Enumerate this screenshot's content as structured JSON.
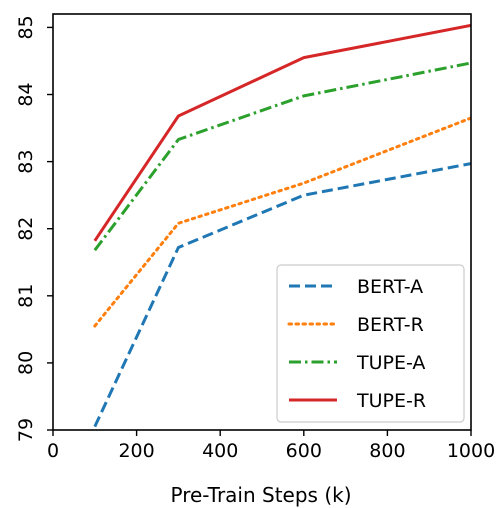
{
  "chart_data": {
    "type": "line",
    "title": "",
    "xlabel": "Pre-Train Steps (k)",
    "ylabel": "",
    "xlim": [
      0,
      1000
    ],
    "ylim": [
      79,
      85.2
    ],
    "x_ticks": [
      0,
      200,
      400,
      600,
      800,
      1000
    ],
    "y_ticks": [
      79,
      80,
      81,
      82,
      83,
      84,
      85
    ],
    "grid": false,
    "legend_position": "bottom-right",
    "series": [
      {
        "name": "BERT-A",
        "color": "#1f77b4",
        "dash": "dashed",
        "x": [
          100,
          300,
          600,
          1000
        ],
        "y": [
          79.05,
          81.72,
          82.5,
          82.97
        ]
      },
      {
        "name": "BERT-R",
        "color": "#ff7f0e",
        "dash": "dotted",
        "x": [
          100,
          300,
          600,
          1000
        ],
        "y": [
          80.55,
          82.08,
          82.68,
          83.65
        ]
      },
      {
        "name": "TUPE-A",
        "color": "#2ca02c",
        "dash": "dashdot",
        "x": [
          100,
          300,
          600,
          1000
        ],
        "y": [
          81.68,
          83.33,
          83.98,
          84.47
        ]
      },
      {
        "name": "TUPE-R",
        "color": "#d62728",
        "dash": "solid",
        "x": [
          100,
          300,
          600,
          1000
        ],
        "y": [
          81.82,
          83.68,
          84.55,
          85.03
        ]
      }
    ]
  }
}
